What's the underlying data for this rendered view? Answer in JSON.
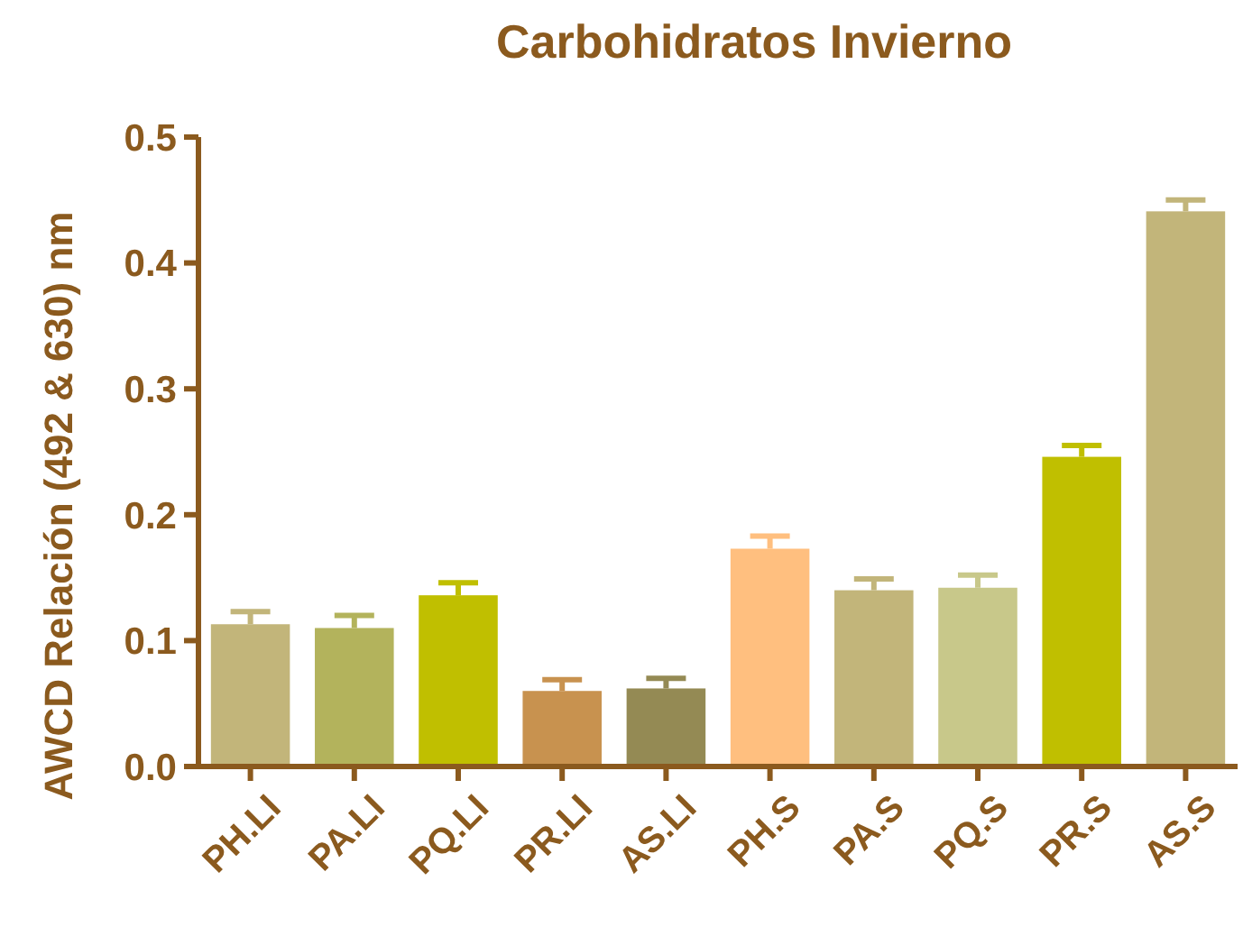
{
  "chart_data": {
    "type": "bar",
    "title": "Carbohidratos Invierno",
    "ylabel": "AWCD Relación (492 & 630) nm",
    "categories": [
      "PH.LI",
      "PA.LI",
      "PQ.LI",
      "PR.LI",
      "AS.LI",
      "PH.S",
      "PA.S",
      "PQ.S",
      "PR.S",
      "AS.S"
    ],
    "values": [
      0.113,
      0.11,
      0.136,
      0.06,
      0.062,
      0.173,
      0.14,
      0.142,
      0.246,
      0.441
    ],
    "errors": [
      [
        0.113,
        0.123
      ],
      [
        0.11,
        0.12
      ],
      [
        0.136,
        0.146
      ],
      [
        0.06,
        0.069
      ],
      [
        0.062,
        0.07
      ],
      [
        0.173,
        0.183
      ],
      [
        0.14,
        0.149
      ],
      [
        0.142,
        0.152
      ],
      [
        0.246,
        0.255
      ],
      [
        0.441,
        0.45
      ]
    ],
    "colors": [
      "#c2b57a",
      "#b3b35c",
      "#c0bf00",
      "#c8924f",
      "#948a54",
      "#ffbf7f",
      "#c2b57a",
      "#c8c88a",
      "#c0bf00",
      "#c2b57a"
    ],
    "ylim": [
      0,
      0.5
    ],
    "yticks": [
      {
        "value": 0,
        "label": "0.0"
      },
      0.1,
      0.2,
      0.3,
      0.4,
      0.5
    ],
    "grid": false
  }
}
